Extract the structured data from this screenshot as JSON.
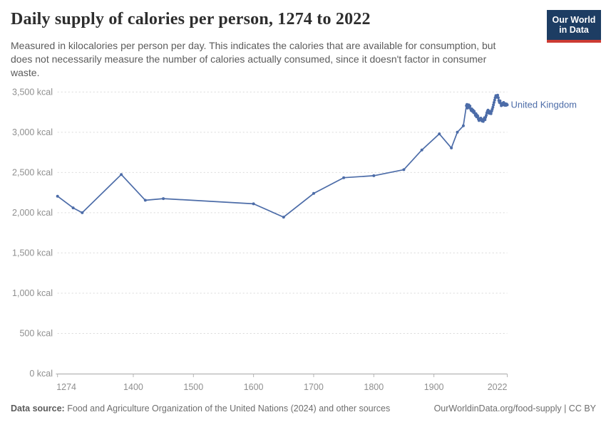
{
  "header": {
    "title": "Daily supply of calories per person, 1274 to 2022",
    "subtitle_lines": [
      "Measured in kilocalories per person per day. This indicates the calories that are available for consumption, but",
      "does not necessarily measure the number of calories actually consumed, since it doesn't factor in consumer",
      "waste."
    ],
    "logo": {
      "line1": "Our World",
      "line2": "in Data",
      "bg_color": "#1d3d63",
      "accent_color": "#cc3b33"
    }
  },
  "footer": {
    "datasource_label": "Data source:",
    "datasource_text": " Food and Agriculture Organization of the United Nations (2024) and other sources",
    "attribution": "OurWorldinData.org/food-supply | CC BY"
  },
  "chart_data": {
    "type": "line",
    "title": "Daily supply of calories per person, 1274 to 2022",
    "unit": "kcal",
    "entity_label": "United Kingdom",
    "line_color": "#4C6CA8",
    "grid": "dashed-horizontal",
    "legend_position": "end-of-line",
    "xlim": [
      1274,
      2022
    ],
    "ylim": [
      0,
      3500
    ],
    "x_ticks": [
      1274,
      1400,
      1500,
      1600,
      1700,
      1800,
      1900,
      2022
    ],
    "x_tick_labels": [
      "1274",
      "1400",
      "1500",
      "1600",
      "1700",
      "1800",
      "1900",
      "2022"
    ],
    "y_ticks": [
      0,
      500,
      1000,
      1500,
      2000,
      2500,
      3000,
      3500
    ],
    "y_tick_labels": [
      "0 kcal",
      "500 kcal",
      "1,000 kcal",
      "1,500 kcal",
      "2,000 kcal",
      "2,500 kcal",
      "3,000 kcal",
      "3,500 kcal"
    ],
    "series": [
      {
        "name": "United Kingdom",
        "points": [
          [
            1274,
            2205
          ],
          [
            1300,
            2060
          ],
          [
            1315,
            2000
          ],
          [
            1380,
            2475
          ],
          [
            1420,
            2155
          ],
          [
            1450,
            2175
          ],
          [
            1600,
            2110
          ],
          [
            1650,
            1945
          ],
          [
            1700,
            2240
          ],
          [
            1750,
            2435
          ],
          [
            1800,
            2460
          ],
          [
            1850,
            2535
          ],
          [
            1880,
            2780
          ],
          [
            1909,
            2980
          ],
          [
            1929,
            2805
          ],
          [
            1939,
            3000
          ],
          [
            1949,
            3080
          ],
          [
            1954,
            3330
          ],
          [
            1955,
            3345
          ],
          [
            1956,
            3300
          ],
          [
            1957,
            3330
          ],
          [
            1958,
            3340
          ],
          [
            1959,
            3310
          ],
          [
            1960,
            3325
          ],
          [
            1961,
            3290
          ],
          [
            1962,
            3270
          ],
          [
            1963,
            3290
          ],
          [
            1964,
            3260
          ],
          [
            1965,
            3275
          ],
          [
            1966,
            3245
          ],
          [
            1967,
            3260
          ],
          [
            1968,
            3235
          ],
          [
            1969,
            3210
          ],
          [
            1970,
            3230
          ],
          [
            1971,
            3190
          ],
          [
            1972,
            3210
          ],
          [
            1973,
            3200
          ],
          [
            1974,
            3165
          ],
          [
            1975,
            3145
          ],
          [
            1976,
            3170
          ],
          [
            1977,
            3155
          ],
          [
            1978,
            3175
          ],
          [
            1979,
            3160
          ],
          [
            1980,
            3140
          ],
          [
            1981,
            3155
          ],
          [
            1982,
            3135
          ],
          [
            1983,
            3160
          ],
          [
            1984,
            3180
          ],
          [
            1985,
            3155
          ],
          [
            1986,
            3185
          ],
          [
            1987,
            3210
          ],
          [
            1988,
            3240
          ],
          [
            1989,
            3260
          ],
          [
            1990,
            3275
          ],
          [
            1991,
            3250
          ],
          [
            1992,
            3235
          ],
          [
            1993,
            3260
          ],
          [
            1994,
            3245
          ],
          [
            1995,
            3230
          ],
          [
            1996,
            3260
          ],
          [
            1997,
            3285
          ],
          [
            1998,
            3310
          ],
          [
            1999,
            3340
          ],
          [
            2000,
            3370
          ],
          [
            2001,
            3400
          ],
          [
            2002,
            3430
          ],
          [
            2003,
            3455
          ],
          [
            2004,
            3435
          ],
          [
            2005,
            3450
          ],
          [
            2006,
            3460
          ],
          [
            2007,
            3430
          ],
          [
            2008,
            3395
          ],
          [
            2009,
            3370
          ],
          [
            2010,
            3390
          ],
          [
            2011,
            3360
          ],
          [
            2012,
            3330
          ],
          [
            2013,
            3345
          ],
          [
            2014,
            3360
          ],
          [
            2015,
            3340
          ],
          [
            2016,
            3370
          ],
          [
            2017,
            3355
          ],
          [
            2018,
            3335
          ],
          [
            2019,
            3355
          ],
          [
            2020,
            3335
          ],
          [
            2021,
            3350
          ],
          [
            2022,
            3340
          ]
        ]
      }
    ]
  }
}
